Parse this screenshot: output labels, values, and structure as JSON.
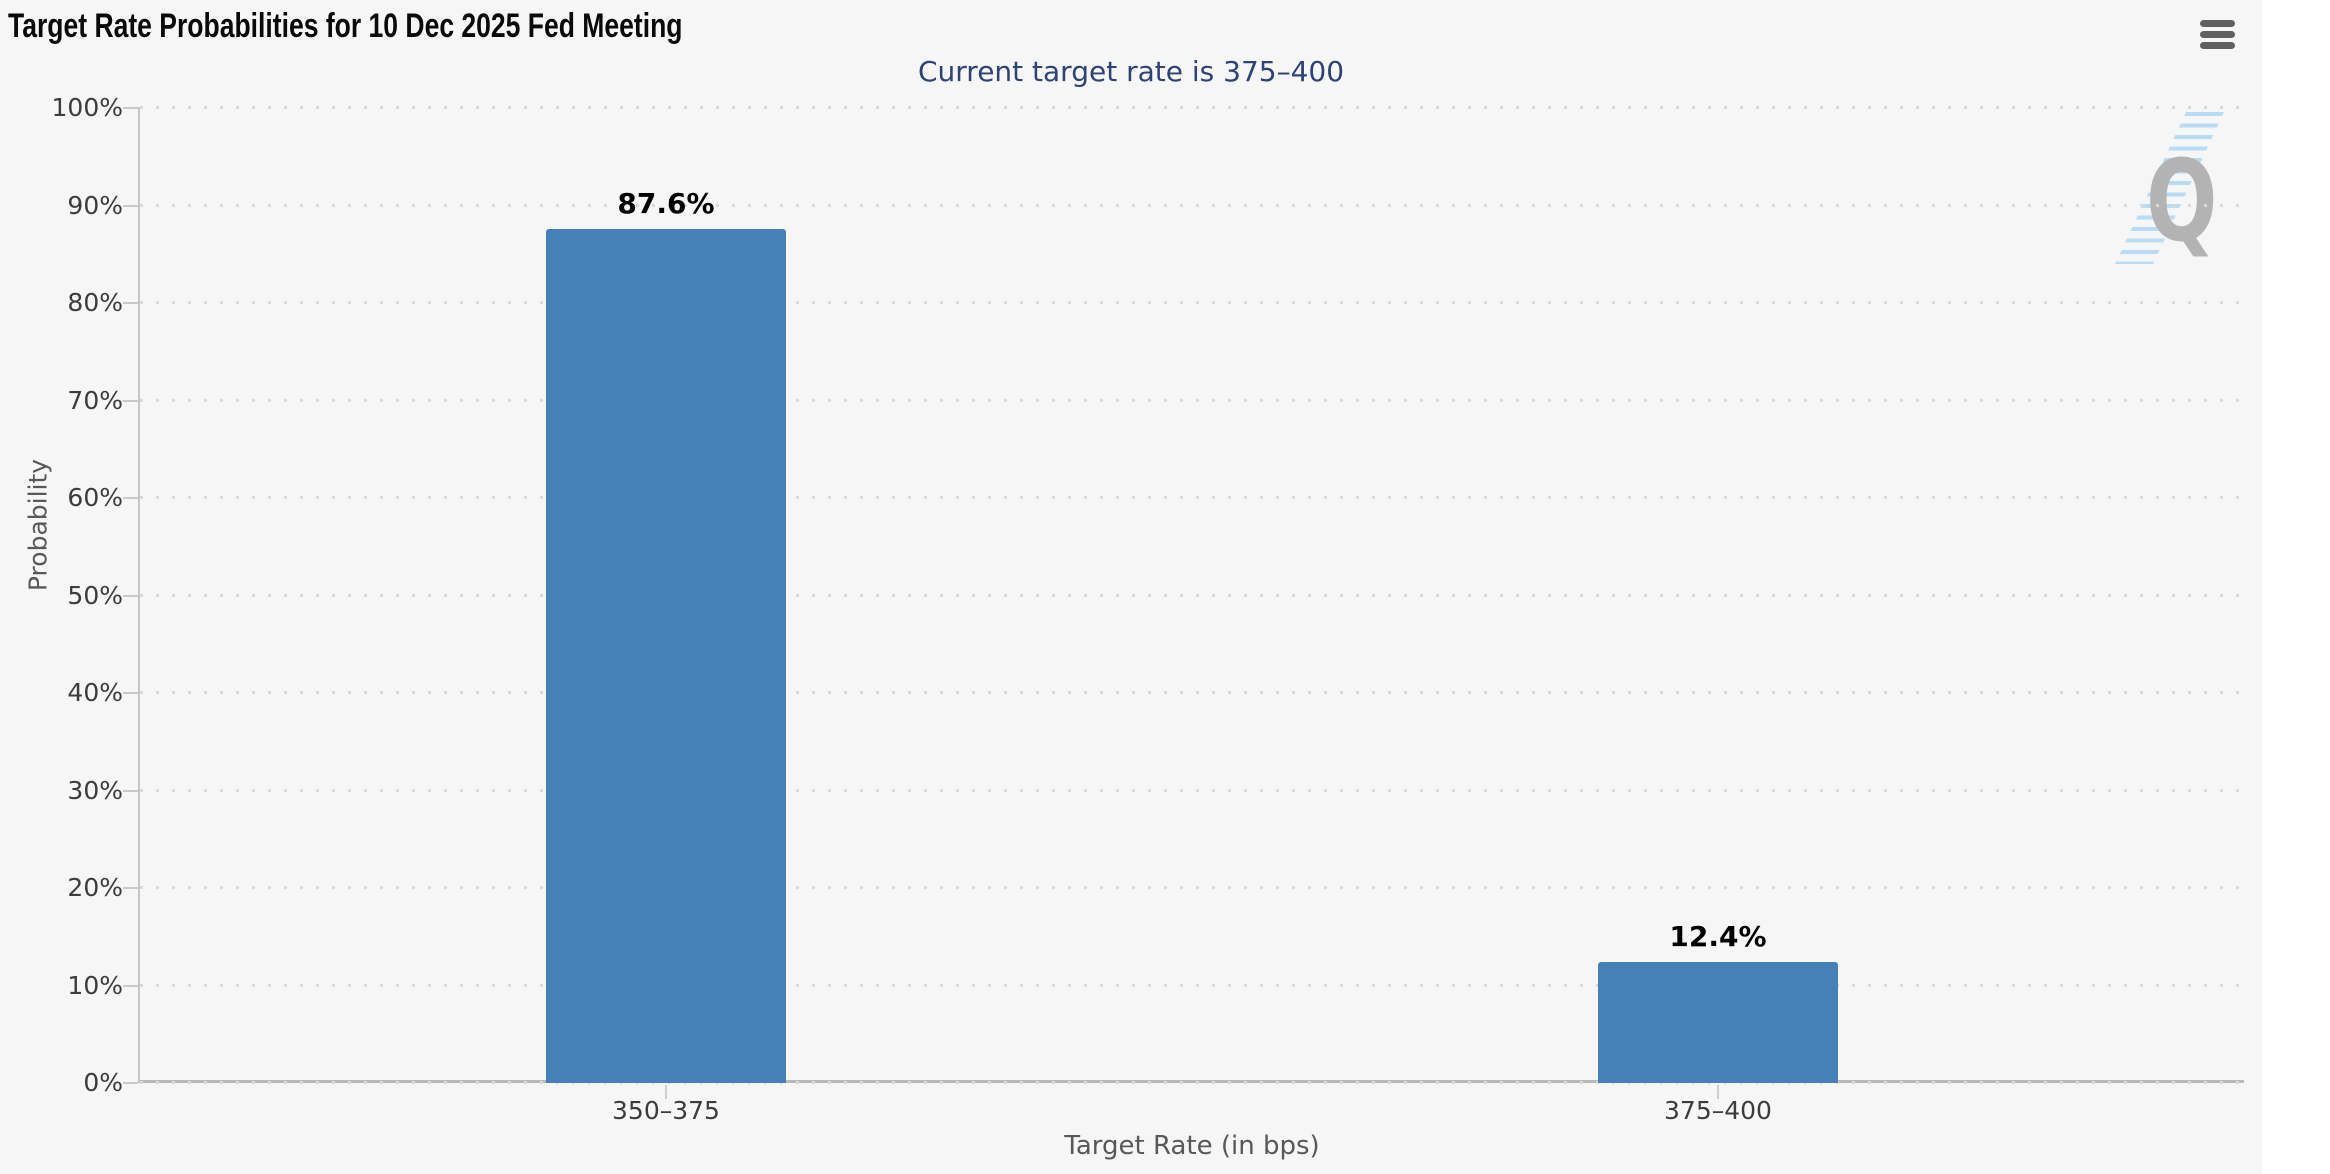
{
  "header": {
    "title": "Target Rate Probabilities for 10 Dec 2025 Fed Meeting",
    "subtitle": "Current target rate is 375–400"
  },
  "menu": {
    "icon": "hamburger-menu",
    "tooltip_label": "Chart context menu"
  },
  "watermark": {
    "letter": "Q"
  },
  "chart_data": {
    "type": "bar",
    "title": "Target Rate Probabilities for 10 Dec 2025 Fed Meeting",
    "subtitle": "Current target rate is 375–400",
    "categories": [
      "350–375",
      "375–400"
    ],
    "values": [
      87.6,
      12.4
    ],
    "value_labels": [
      "87.6%",
      "12.4%"
    ],
    "xlabel": "Target Rate (in bps)",
    "ylabel": "Probability",
    "ylim": [
      0,
      100
    ],
    "ytick_step": 10,
    "ytick_labels": [
      "0%",
      "10%",
      "20%",
      "30%",
      "40%",
      "50%",
      "60%",
      "70%",
      "80%",
      "90%",
      "100%"
    ],
    "grid": "dotted-horizontal",
    "legend": "none",
    "bar_color": "#4580b6"
  },
  "colors": {
    "background": "#f6f6f6",
    "bar": "#4580b6",
    "subtitle_text": "#2e4374",
    "grid_dot": "#d9d9d9",
    "axis_line": "#c3c3c3",
    "tick": "#c9c9c9",
    "tick_label": "#3c3c3c",
    "axis_title": "#58585a",
    "data_label": "#000000",
    "menu_icon": "#606060",
    "watermark_q": "#b3b3b3",
    "watermark_stripes": "#b7dcf4"
  }
}
